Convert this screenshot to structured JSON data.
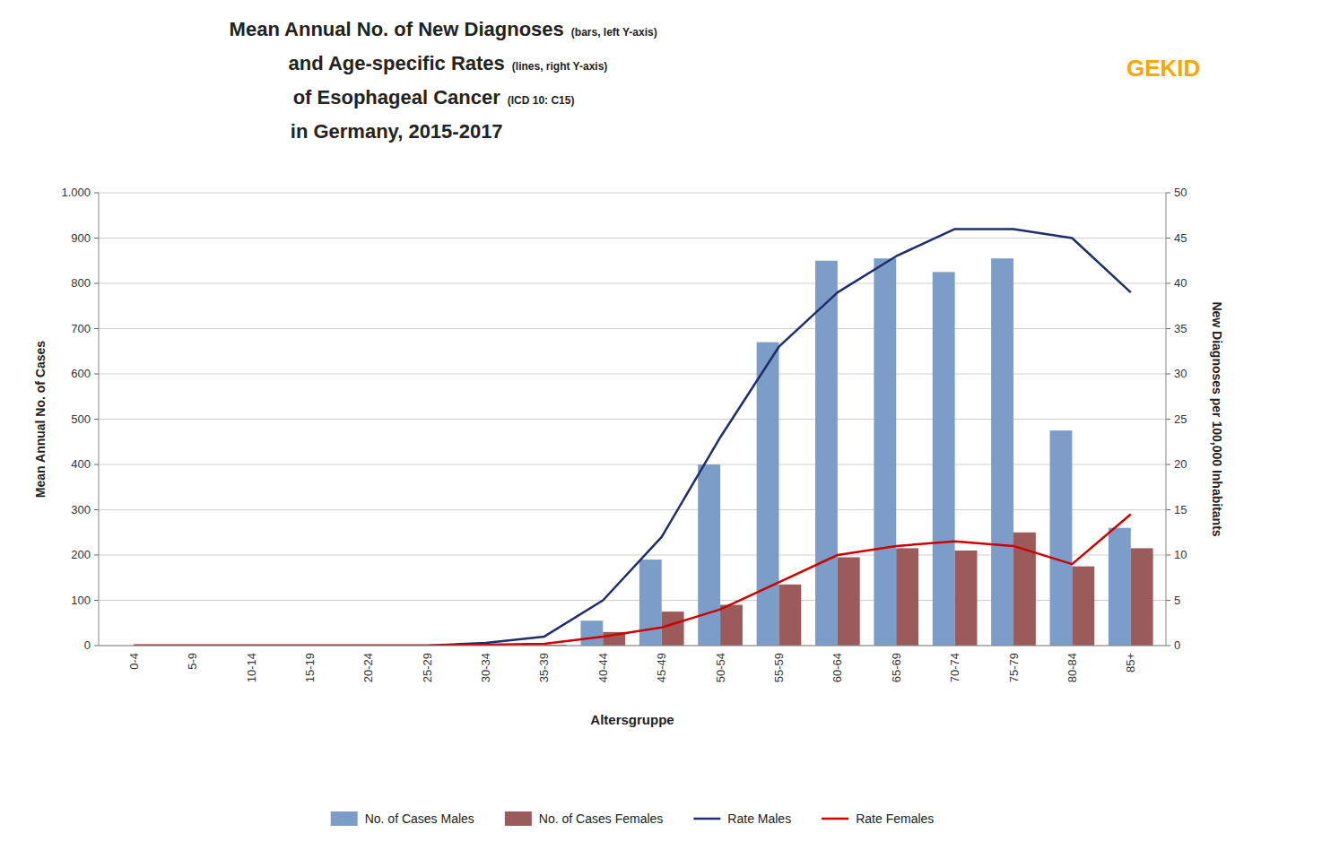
{
  "chart_data": {
    "type": "bar",
    "title": [
      {
        "text": "Mean Annual No. of New Diagnoses",
        "note": "(bars, left Y-axis)"
      },
      {
        "text": "and Age-specific Rates",
        "note": "(lines, right Y-axis)"
      },
      {
        "text": "of Esophageal Cancer",
        "note": "(ICD 10: C15)"
      },
      {
        "text": "in Germany, 2015-2017"
      }
    ],
    "annotations": [
      {
        "text": "GEKID",
        "color": "#F5A800"
      }
    ],
    "x_label": "Altersgruppe",
    "y_label": "Mean Annual No. of Cases",
    "y2_label": "New Diagnoses per 100,000 Inhabitants",
    "categories": [
      "0-4",
      "5-9",
      "10-14",
      "15-19",
      "20-24",
      "25-29",
      "30-34",
      "35-39",
      "40-44",
      "45-49",
      "50-54",
      "55-59",
      "60-64",
      "65-69",
      "70-74",
      "75-79",
      "80-84",
      "85+"
    ],
    "series": [
      {
        "name": "No. of Cases Males",
        "type": "bar",
        "color": "#7B9DC8",
        "values": [
          0,
          0,
          0,
          0,
          0,
          0,
          0,
          5,
          55,
          190,
          400,
          670,
          850,
          855,
          825,
          855,
          475,
          260
        ]
      },
      {
        "name": "No. of Cases Females",
        "type": "bar",
        "color": "#9B5B5B",
        "values": [
          0,
          0,
          0,
          0,
          0,
          0,
          0,
          2,
          30,
          75,
          90,
          135,
          195,
          215,
          210,
          250,
          175,
          215
        ]
      },
      {
        "name": "Rate Males",
        "type": "line",
        "axis": "y2",
        "color": "#1F2D6B",
        "values": [
          0,
          0,
          0,
          0,
          0,
          0,
          0.3,
          1.0,
          5.0,
          12.0,
          23.0,
          33.0,
          39.0,
          43.0,
          46.0,
          46.0,
          45.0,
          39.0
        ]
      },
      {
        "name": "Rate Females",
        "type": "line",
        "axis": "y2",
        "color": "#CC0000",
        "values": [
          0,
          0,
          0,
          0,
          0,
          0,
          0.1,
          0.2,
          1.0,
          2.0,
          4.0,
          7.0,
          10.0,
          11.0,
          11.5,
          11.0,
          9.0,
          14.5
        ]
      }
    ],
    "ylim": [
      0,
      1000
    ],
    "yticks": [
      0,
      100,
      200,
      300,
      400,
      500,
      600,
      700,
      800,
      900,
      {
        "value": 1000,
        "label": "1.000"
      }
    ],
    "y2lim": [
      0,
      50
    ],
    "y2ticks": [
      0,
      5,
      10,
      15,
      20,
      25,
      30,
      35,
      40,
      45,
      50
    ],
    "grid": true,
    "legend": "bottom"
  }
}
